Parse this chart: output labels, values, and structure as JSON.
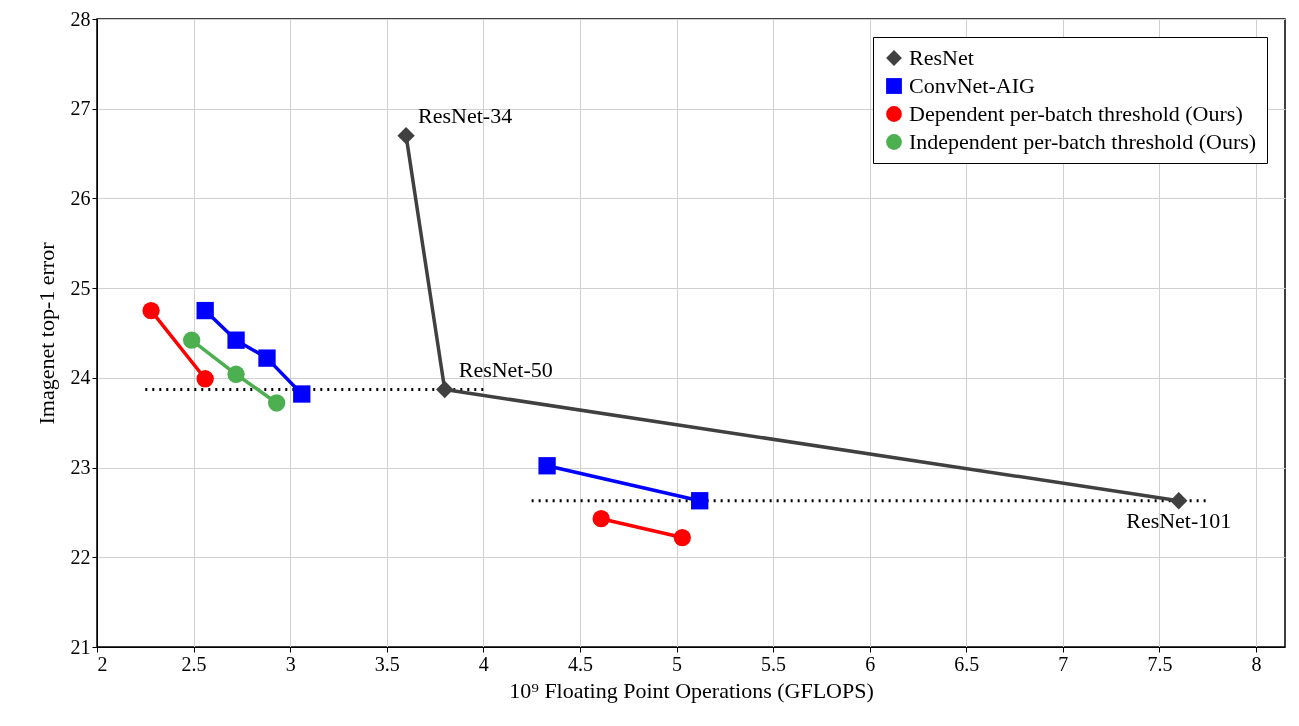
{
  "chart_data": {
    "type": "line",
    "xlabel": "10⁹ Floating Point Operations (GFLOPS)",
    "ylabel": "Imagenet top-1 error",
    "xlim": [
      2,
      8.15
    ],
    "ylim": [
      21,
      28
    ],
    "xticks": [
      2,
      2.5,
      3,
      3.5,
      4,
      4.5,
      5,
      5.5,
      6,
      6.5,
      7,
      7.5,
      8
    ],
    "yticks": [
      21,
      22,
      23,
      24,
      25,
      26,
      27,
      28
    ],
    "grid": true,
    "legend": "top right",
    "series": [
      {
        "name": "ResNet",
        "color": "#404040",
        "marker": "diamond",
        "x": [
          3.6,
          3.8,
          7.6
        ],
        "values": [
          26.7,
          23.87,
          22.63
        ]
      },
      {
        "name": "ConvNet-AIG",
        "color": "#0000ff",
        "marker": "square",
        "x": [
          2.56,
          2.72,
          2.88,
          3.06
        ],
        "values": [
          24.75,
          24.42,
          24.22,
          23.82
        ]
      },
      {
        "name": "Dependent per-batch threshold (Ours)",
        "color": "#ff0000",
        "marker": "circle",
        "x": [
          2.28,
          2.56
        ],
        "values": [
          24.75,
          23.99
        ]
      },
      {
        "name": "Independent per-batch threshold (Ours)",
        "color": "#4caf50",
        "marker": "circle",
        "x": [
          2.49,
          2.72,
          2.93
        ],
        "values": [
          24.42,
          24.04,
          23.72
        ]
      },
      {
        "color": "#0000ff",
        "marker": "square",
        "x": [
          4.33,
          5.12
        ],
        "values": [
          23.02,
          22.63
        ]
      },
      {
        "color": "#ff0000",
        "marker": "circle",
        "x": [
          4.61,
          5.03
        ],
        "values": [
          22.43,
          22.22
        ]
      },
      {
        "color": "#000000",
        "line_style": "dotted",
        "marker": "none",
        "x": [
          2.25,
          4.0
        ],
        "values": [
          23.87,
          23.87
        ]
      },
      {
        "color": "#000000",
        "line_style": "dotted",
        "marker": "none",
        "x": [
          4.25,
          7.75
        ],
        "values": [
          22.63,
          22.63
        ]
      }
    ],
    "annotations": [
      {
        "text": "ResNet-34",
        "x": 3.6,
        "y": 26.7
      },
      {
        "text": "ResNet-50",
        "x": 3.8,
        "y": 23.87
      },
      {
        "text": "ResNet-101",
        "x": 7.6,
        "y": 22.63
      }
    ]
  }
}
